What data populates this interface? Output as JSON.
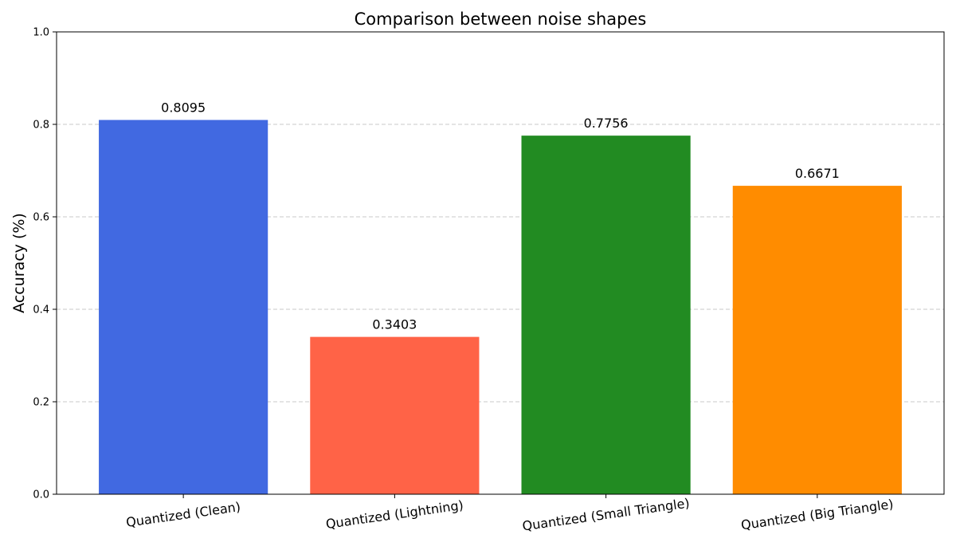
{
  "chart_data": {
    "type": "bar",
    "title": "Comparison between noise shapes",
    "xlabel": "",
    "ylabel": "Accuracy (%)",
    "ylim": [
      0,
      1.0
    ],
    "yticks": [
      "0.0",
      "0.2",
      "0.4",
      "0.6",
      "0.8",
      "1.0"
    ],
    "ytick_values": [
      0,
      0.2,
      0.4,
      0.6,
      0.8,
      1.0
    ],
    "grid": true,
    "categories": [
      "Quantized (Clean)",
      "Quantized (Lightning)",
      "Quantized (Small Triangle)",
      "Quantized (Big Triangle)"
    ],
    "values": [
      0.8095,
      0.3403,
      0.7756,
      0.6671
    ],
    "data_labels": [
      "0.8095",
      "0.3403",
      "0.7756",
      "0.6671"
    ],
    "colors": [
      "#4169e1",
      "#ff6347",
      "#228b22",
      "#ff8c00"
    ]
  }
}
